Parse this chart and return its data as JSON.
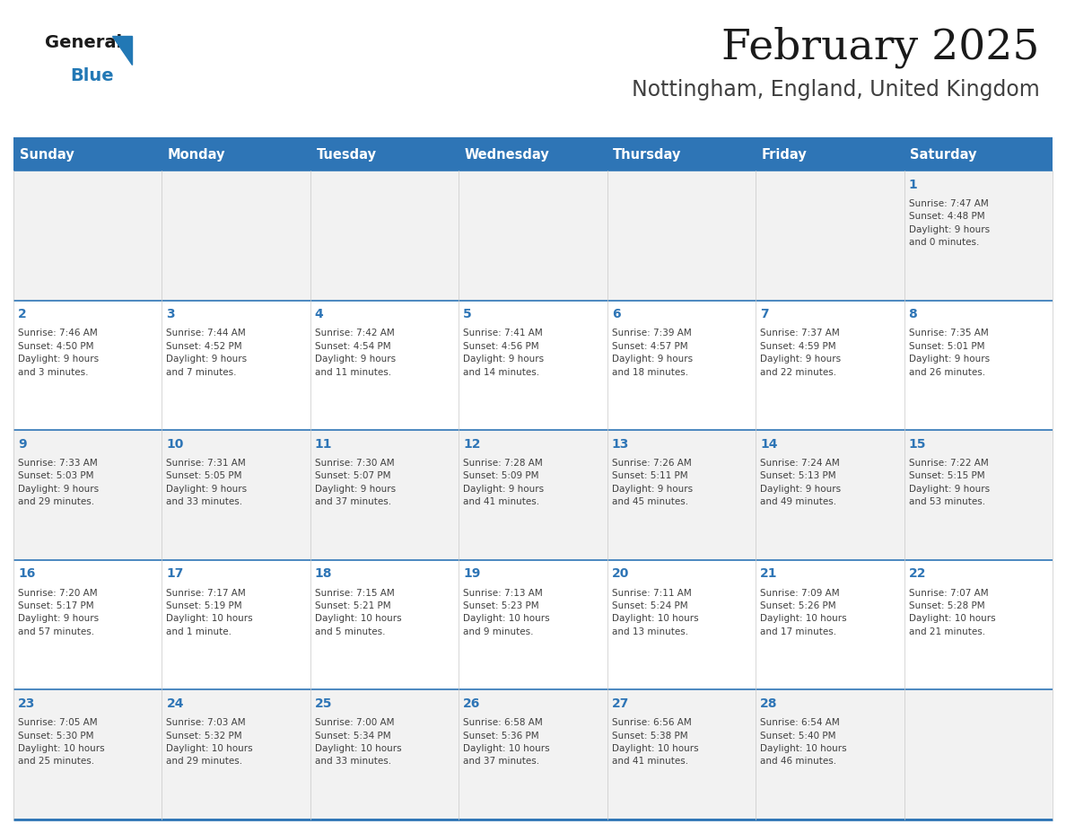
{
  "title": "February 2025",
  "subtitle": "Nottingham, England, United Kingdom",
  "header_bg": "#2E75B6",
  "header_text_color": "#FFFFFF",
  "cell_bg_week1": "#F2F2F2",
  "cell_bg_week2": "#FFFFFF",
  "cell_bg_week3": "#F2F2F2",
  "cell_bg_week4": "#FFFFFF",
  "cell_bg_week5": "#F2F2F2",
  "day_number_color": "#2E75B6",
  "text_color": "#404040",
  "border_color": "#2E75B6",
  "days_of_week": [
    "Sunday",
    "Monday",
    "Tuesday",
    "Wednesday",
    "Thursday",
    "Friday",
    "Saturday"
  ],
  "weeks": [
    [
      {
        "day": null,
        "info": null
      },
      {
        "day": null,
        "info": null
      },
      {
        "day": null,
        "info": null
      },
      {
        "day": null,
        "info": null
      },
      {
        "day": null,
        "info": null
      },
      {
        "day": null,
        "info": null
      },
      {
        "day": "1",
        "info": "Sunrise: 7:47 AM\nSunset: 4:48 PM\nDaylight: 9 hours\nand 0 minutes."
      }
    ],
    [
      {
        "day": "2",
        "info": "Sunrise: 7:46 AM\nSunset: 4:50 PM\nDaylight: 9 hours\nand 3 minutes."
      },
      {
        "day": "3",
        "info": "Sunrise: 7:44 AM\nSunset: 4:52 PM\nDaylight: 9 hours\nand 7 minutes."
      },
      {
        "day": "4",
        "info": "Sunrise: 7:42 AM\nSunset: 4:54 PM\nDaylight: 9 hours\nand 11 minutes."
      },
      {
        "day": "5",
        "info": "Sunrise: 7:41 AM\nSunset: 4:56 PM\nDaylight: 9 hours\nand 14 minutes."
      },
      {
        "day": "6",
        "info": "Sunrise: 7:39 AM\nSunset: 4:57 PM\nDaylight: 9 hours\nand 18 minutes."
      },
      {
        "day": "7",
        "info": "Sunrise: 7:37 AM\nSunset: 4:59 PM\nDaylight: 9 hours\nand 22 minutes."
      },
      {
        "day": "8",
        "info": "Sunrise: 7:35 AM\nSunset: 5:01 PM\nDaylight: 9 hours\nand 26 minutes."
      }
    ],
    [
      {
        "day": "9",
        "info": "Sunrise: 7:33 AM\nSunset: 5:03 PM\nDaylight: 9 hours\nand 29 minutes."
      },
      {
        "day": "10",
        "info": "Sunrise: 7:31 AM\nSunset: 5:05 PM\nDaylight: 9 hours\nand 33 minutes."
      },
      {
        "day": "11",
        "info": "Sunrise: 7:30 AM\nSunset: 5:07 PM\nDaylight: 9 hours\nand 37 minutes."
      },
      {
        "day": "12",
        "info": "Sunrise: 7:28 AM\nSunset: 5:09 PM\nDaylight: 9 hours\nand 41 minutes."
      },
      {
        "day": "13",
        "info": "Sunrise: 7:26 AM\nSunset: 5:11 PM\nDaylight: 9 hours\nand 45 minutes."
      },
      {
        "day": "14",
        "info": "Sunrise: 7:24 AM\nSunset: 5:13 PM\nDaylight: 9 hours\nand 49 minutes."
      },
      {
        "day": "15",
        "info": "Sunrise: 7:22 AM\nSunset: 5:15 PM\nDaylight: 9 hours\nand 53 minutes."
      }
    ],
    [
      {
        "day": "16",
        "info": "Sunrise: 7:20 AM\nSunset: 5:17 PM\nDaylight: 9 hours\nand 57 minutes."
      },
      {
        "day": "17",
        "info": "Sunrise: 7:17 AM\nSunset: 5:19 PM\nDaylight: 10 hours\nand 1 minute."
      },
      {
        "day": "18",
        "info": "Sunrise: 7:15 AM\nSunset: 5:21 PM\nDaylight: 10 hours\nand 5 minutes."
      },
      {
        "day": "19",
        "info": "Sunrise: 7:13 AM\nSunset: 5:23 PM\nDaylight: 10 hours\nand 9 minutes."
      },
      {
        "day": "20",
        "info": "Sunrise: 7:11 AM\nSunset: 5:24 PM\nDaylight: 10 hours\nand 13 minutes."
      },
      {
        "day": "21",
        "info": "Sunrise: 7:09 AM\nSunset: 5:26 PM\nDaylight: 10 hours\nand 17 minutes."
      },
      {
        "day": "22",
        "info": "Sunrise: 7:07 AM\nSunset: 5:28 PM\nDaylight: 10 hours\nand 21 minutes."
      }
    ],
    [
      {
        "day": "23",
        "info": "Sunrise: 7:05 AM\nSunset: 5:30 PM\nDaylight: 10 hours\nand 25 minutes."
      },
      {
        "day": "24",
        "info": "Sunrise: 7:03 AM\nSunset: 5:32 PM\nDaylight: 10 hours\nand 29 minutes."
      },
      {
        "day": "25",
        "info": "Sunrise: 7:00 AM\nSunset: 5:34 PM\nDaylight: 10 hours\nand 33 minutes."
      },
      {
        "day": "26",
        "info": "Sunrise: 6:58 AM\nSunset: 5:36 PM\nDaylight: 10 hours\nand 37 minutes."
      },
      {
        "day": "27",
        "info": "Sunrise: 6:56 AM\nSunset: 5:38 PM\nDaylight: 10 hours\nand 41 minutes."
      },
      {
        "day": "28",
        "info": "Sunrise: 6:54 AM\nSunset: 5:40 PM\nDaylight: 10 hours\nand 46 minutes."
      },
      {
        "day": null,
        "info": null
      }
    ]
  ],
  "logo_color_general": "#1a1a1a",
  "logo_color_blue": "#2278B5",
  "logo_triangle_color": "#2278B5",
  "cell_bgs": [
    "#F2F2F2",
    "#FFFFFF",
    "#F2F2F2",
    "#FFFFFF",
    "#F2F2F2"
  ]
}
